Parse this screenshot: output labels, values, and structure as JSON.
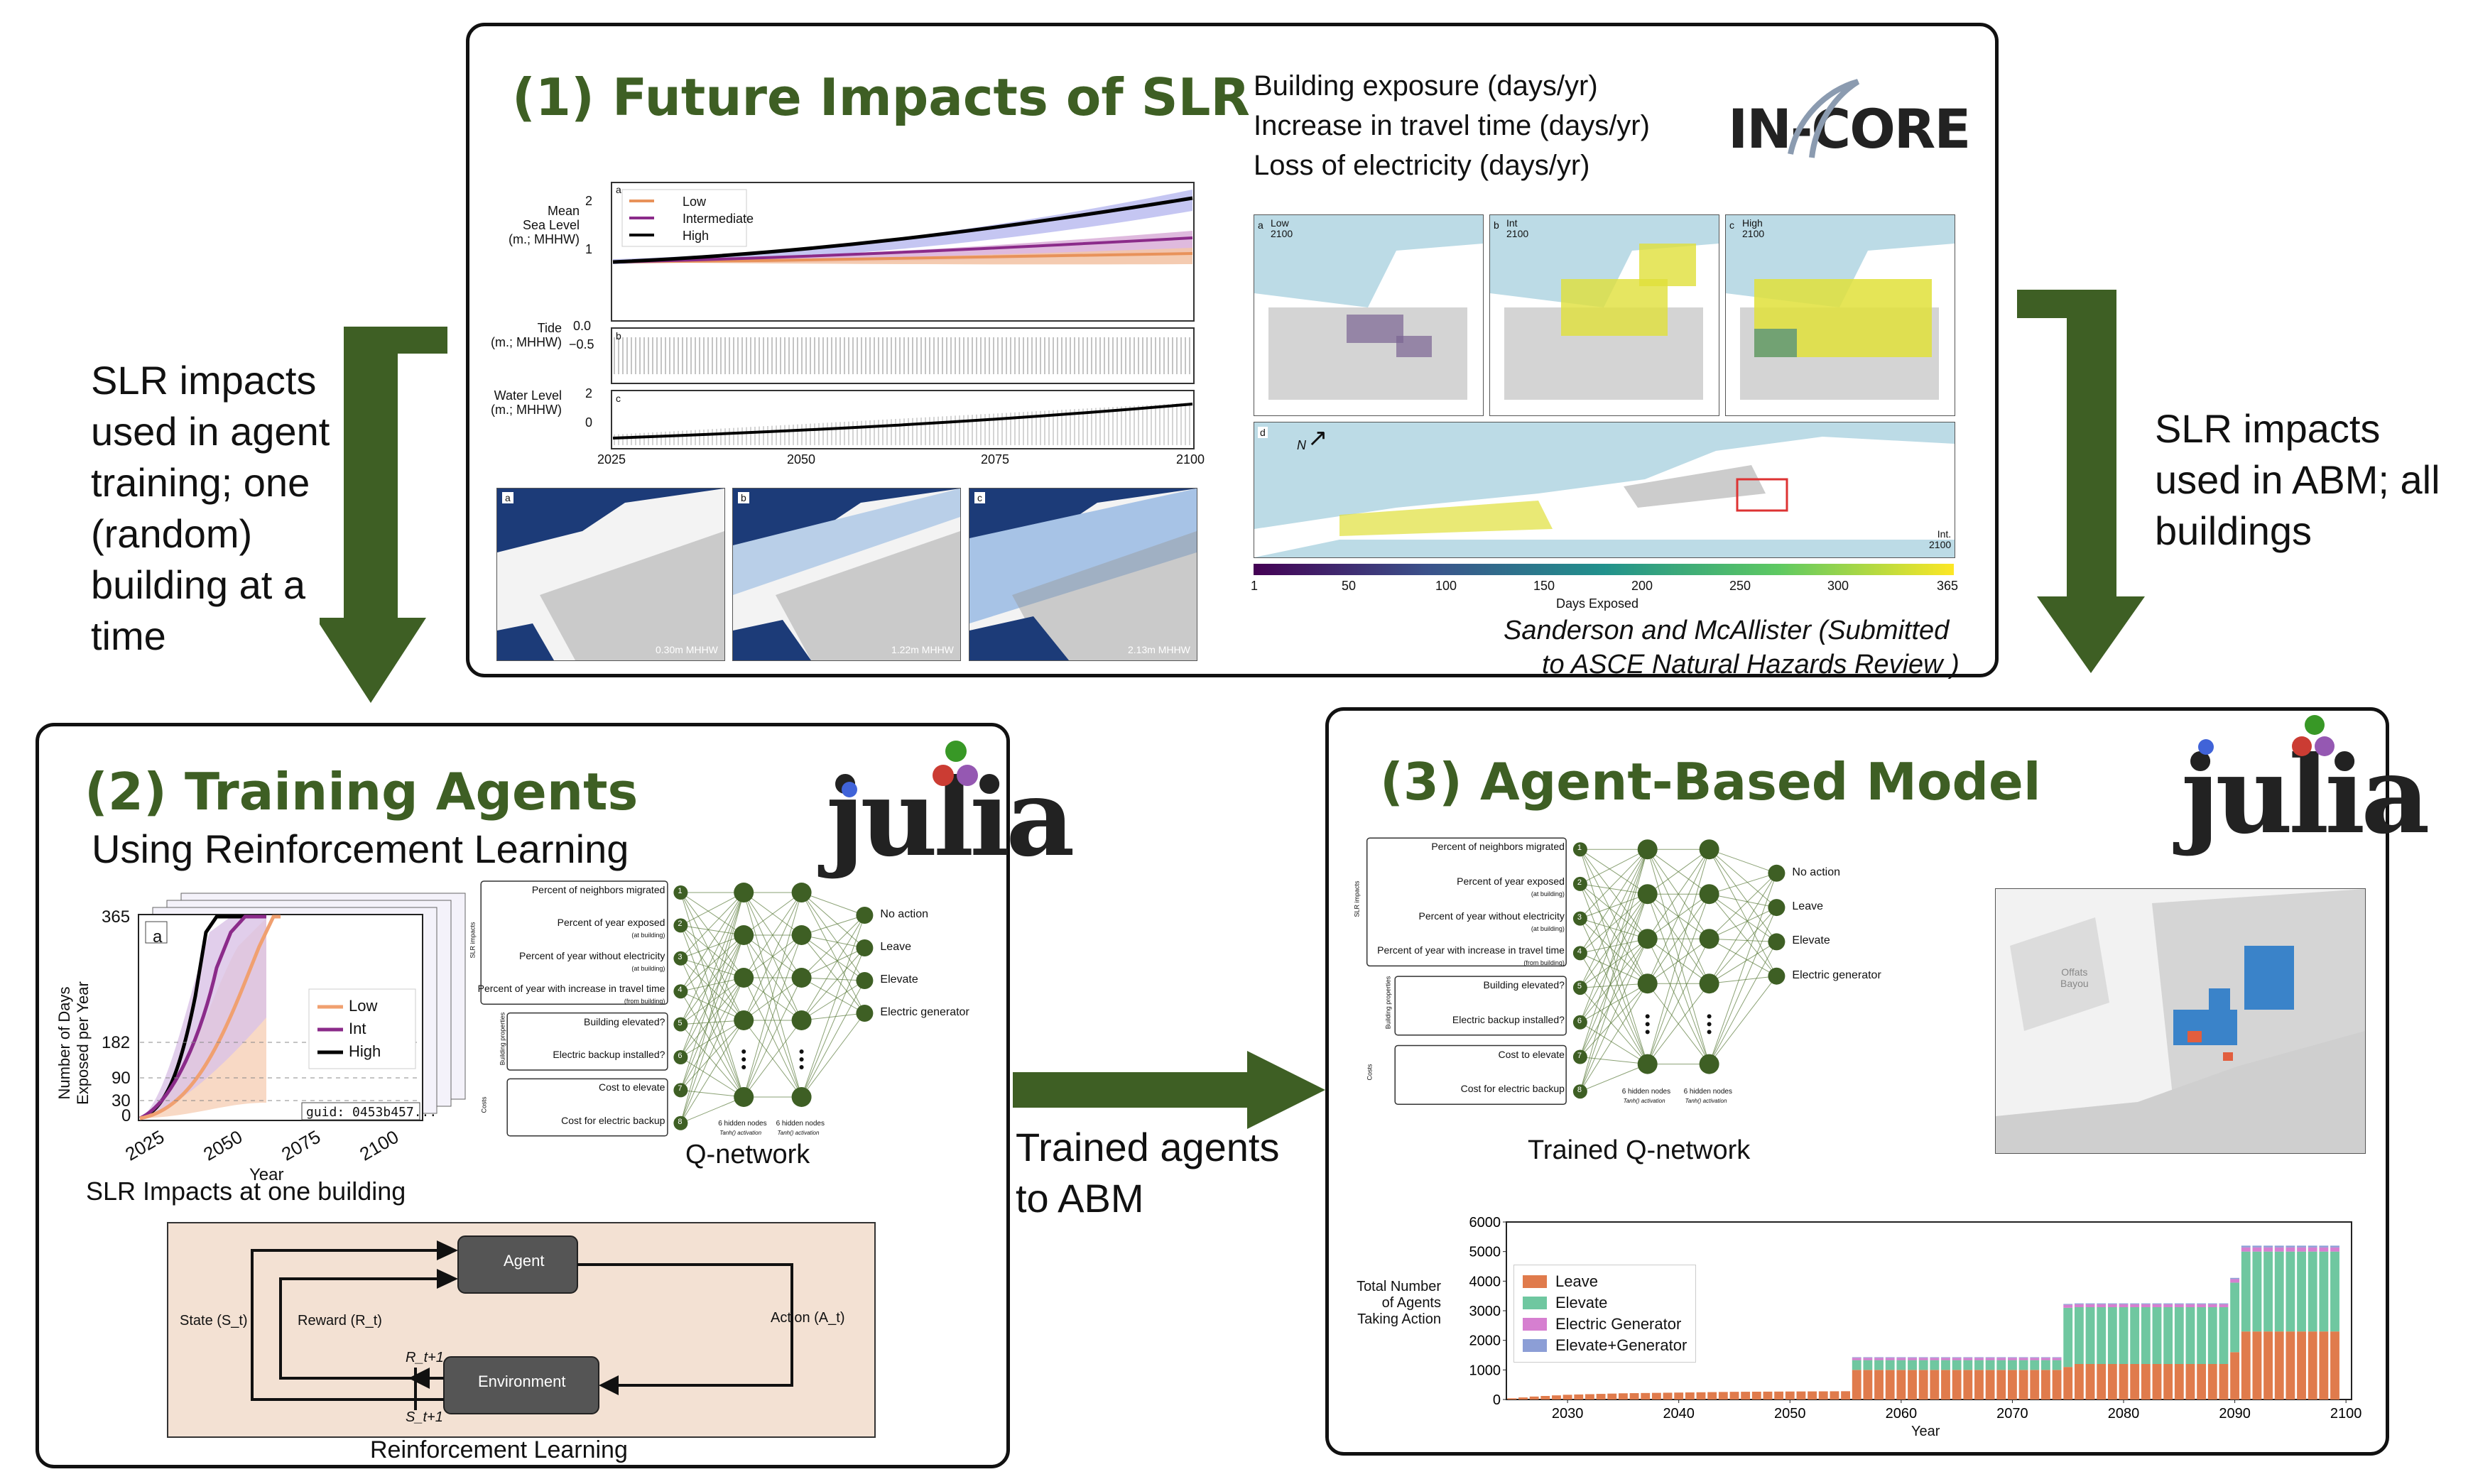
{
  "panel1": {
    "title": "(1) Future Impacts of SLR",
    "measures": [
      "Building exposure (days/yr)",
      "Increase in travel time (days/yr)",
      "Loss of electricity (days/yr)"
    ],
    "logo": "IN-CORE",
    "ts": {
      "a": "a",
      "b": "b",
      "c": "c",
      "y1": "Mean\nSea Level\n(m.; MHHW)",
      "y2": "Tide\n(m.; MHHW)",
      "y3": "Water Level\n(m.; MHHW)",
      "y1ticks": [
        "2",
        "1"
      ],
      "y2ticks": [
        "0.0",
        "−0.5"
      ],
      "y3ticks": [
        "2",
        "0"
      ],
      "xticks": [
        "2025",
        "2050",
        "2075",
        "2100"
      ],
      "legend": [
        "Low",
        "Intermediate",
        "High"
      ]
    },
    "maps": [
      {
        "tag": "a",
        "label": "0.30m MHHW"
      },
      {
        "tag": "b",
        "label": "1.22m MHHW"
      },
      {
        "tag": "c",
        "label": "2.13m MHHW"
      }
    ],
    "exposure": [
      {
        "tag": "a",
        "label": "Low\n2100"
      },
      {
        "tag": "b",
        "label": "Int\n2100"
      },
      {
        "tag": "c",
        "label": "High\n2100"
      }
    ],
    "wide": {
      "tag": "d",
      "label": "Int.\n2100",
      "north": "N"
    },
    "colorbar": {
      "ticks": [
        "1",
        "50",
        "100",
        "150",
        "200",
        "250",
        "300",
        "365"
      ],
      "title": "Days Exposed"
    },
    "citation1": "Sanderson and McAllister (Submitted",
    "citation2": "to ASCE Natural Hazards Review )"
  },
  "left_note": "SLR impacts used in agent training; one (random) building at a time",
  "right_note": "SLR impacts used in ABM; all buildings",
  "middle_note": "Trained agents to ABM",
  "panel2": {
    "title": "(2) Training Agents",
    "subtitle": "Using Reinforcement Learning",
    "logo": "julia",
    "chart": {
      "tag": "a",
      "yticks": [
        "365",
        "182",
        "90",
        "30",
        "0"
      ],
      "xticks": [
        "2025",
        "2050",
        "2075",
        "2100"
      ],
      "ylabel": "Number of Days\nExposed per Year",
      "xlabel": "Year",
      "legend": [
        "Low",
        "Int",
        "High"
      ],
      "guid": "guid: 0453b457..."
    },
    "chart_caption": "SLR Impacts at one building",
    "qnet": {
      "inputs": [
        "Percent of neighbors migrated",
        "Percent of year exposed",
        "Percent of year without electricity",
        "Percent of year with increase in travel time",
        "Building elevated?",
        "Electric backup installed?",
        "Cost to elevate",
        "Cost for electric backup"
      ],
      "subs": [
        "",
        "(at building)",
        "(at building)",
        "(from building)",
        "",
        "",
        "",
        ""
      ],
      "nums": [
        "1",
        "2",
        "3",
        "4",
        "5",
        "6",
        "7",
        "8"
      ],
      "groups": [
        "SLR impacts",
        "Building properties",
        "Costs"
      ],
      "outputs": [
        "No action",
        "Leave",
        "Elevate",
        "Electric generator"
      ],
      "hidden": "6 hidden nodes",
      "act": "Tanh() activation",
      "caption": "Q-network"
    },
    "rl": {
      "agent": "Agent",
      "env": "Environment",
      "state": "State (S_t)",
      "reward": "Reward (R_t)",
      "action": "Action (A_t)",
      "r1": "R_t+1",
      "s1": "S_t+1",
      "caption": "Reinforcement Learning"
    }
  },
  "panel3": {
    "title": "(3) Agent-Based Model",
    "logo": "julia",
    "qnet": {
      "inputs": [
        "Percent of neighbors migrated",
        "Percent of year exposed",
        "Percent of year without electricity",
        "Percent of year with increase in travel time",
        "Building elevated?",
        "Electric backup installed?",
        "Cost to elevate",
        "Cost for electric backup"
      ],
      "subs": [
        "",
        "(at building)",
        "(at building)",
        "(from building)",
        "",
        "",
        "",
        ""
      ],
      "nums": [
        "1",
        "2",
        "3",
        "4",
        "5",
        "6",
        "7",
        "8"
      ],
      "groups": [
        "SLR impacts",
        "Building properties",
        "Costs"
      ],
      "outputs": [
        "No action",
        "Leave",
        "Elevate",
        "Electric generator"
      ],
      "hidden": "6 hidden nodes",
      "act": "Tanh() activation",
      "caption": "Trained Q-network"
    },
    "map_label": "Offats\nBayou"
  },
  "chart_data": {
    "type": "bar",
    "stacked": true,
    "ylabel": "Total Number\nof Agents\nTaking Action",
    "xlabel": "Year",
    "ylim": [
      0,
      6000
    ],
    "yticks": [
      0,
      1000,
      2000,
      3000,
      4000,
      5000,
      6000
    ],
    "xticks": [
      2030,
      2040,
      2050,
      2060,
      2070,
      2080,
      2090,
      2100
    ],
    "x": [
      2025,
      2026,
      2027,
      2028,
      2029,
      2030,
      2031,
      2032,
      2033,
      2034,
      2035,
      2036,
      2037,
      2038,
      2039,
      2040,
      2041,
      2042,
      2043,
      2044,
      2045,
      2046,
      2047,
      2048,
      2049,
      2050,
      2051,
      2052,
      2053,
      2054,
      2055,
      2056,
      2057,
      2058,
      2059,
      2060,
      2061,
      2062,
      2063,
      2064,
      2065,
      2066,
      2067,
      2068,
      2069,
      2070,
      2071,
      2072,
      2073,
      2074,
      2075,
      2076,
      2077,
      2078,
      2079,
      2080,
      2081,
      2082,
      2083,
      2084,
      2085,
      2086,
      2087,
      2088,
      2089,
      2090,
      2091,
      2092,
      2093,
      2094,
      2095,
      2096,
      2097,
      2098,
      2099
    ],
    "series": [
      {
        "name": "Leave",
        "color": "#e07b4c",
        "values": [
          40,
          70,
          100,
          120,
          140,
          160,
          170,
          180,
          190,
          200,
          210,
          215,
          220,
          225,
          230,
          235,
          240,
          245,
          250,
          255,
          260,
          262,
          264,
          266,
          268,
          270,
          272,
          274,
          276,
          278,
          280,
          1000,
          1000,
          1000,
          1000,
          1000,
          1000,
          1000,
          1000,
          1000,
          1000,
          1000,
          1000,
          1000,
          1000,
          1000,
          1000,
          1000,
          1000,
          1000,
          1100,
          1200,
          1200,
          1200,
          1200,
          1200,
          1200,
          1200,
          1200,
          1200,
          1200,
          1200,
          1200,
          1200,
          1200,
          1600,
          2300,
          2300,
          2300,
          2300,
          2300,
          2300,
          2300,
          2300,
          2300
        ]
      },
      {
        "name": "Elevate",
        "color": "#6fc7a0",
        "values": [
          0,
          0,
          0,
          0,
          0,
          0,
          0,
          0,
          0,
          0,
          0,
          0,
          0,
          0,
          0,
          0,
          0,
          0,
          0,
          0,
          0,
          0,
          0,
          0,
          0,
          0,
          0,
          0,
          0,
          0,
          0,
          330,
          330,
          330,
          330,
          330,
          330,
          330,
          330,
          330,
          330,
          330,
          330,
          330,
          330,
          330,
          330,
          330,
          330,
          330,
          2000,
          1920,
          1920,
          1920,
          1920,
          1920,
          1920,
          1920,
          1920,
          1920,
          1920,
          1920,
          1920,
          1920,
          1920,
          2350,
          2700,
          2700,
          2700,
          2700,
          2700,
          2700,
          2700,
          2700,
          2700
        ]
      },
      {
        "name": "Electric Generator",
        "color": "#d67fd0",
        "values": [
          0,
          0,
          0,
          0,
          0,
          0,
          0,
          0,
          0,
          0,
          0,
          0,
          0,
          0,
          0,
          0,
          0,
          0,
          0,
          0,
          0,
          0,
          0,
          0,
          0,
          0,
          0,
          0,
          0,
          0,
          0,
          80,
          80,
          80,
          80,
          80,
          80,
          80,
          80,
          80,
          80,
          80,
          80,
          80,
          80,
          80,
          80,
          80,
          80,
          80,
          100,
          100,
          100,
          100,
          100,
          100,
          100,
          100,
          100,
          100,
          100,
          100,
          100,
          100,
          100,
          120,
          140,
          140,
          140,
          140,
          140,
          140,
          140,
          140,
          140
        ]
      },
      {
        "name": "Elevate+Generator",
        "color": "#8c9ed6",
        "values": [
          0,
          0,
          0,
          0,
          0,
          0,
          0,
          0,
          0,
          0,
          0,
          0,
          0,
          0,
          0,
          0,
          0,
          0,
          0,
          0,
          0,
          0,
          0,
          0,
          0,
          0,
          0,
          0,
          0,
          0,
          0,
          20,
          20,
          20,
          20,
          20,
          20,
          20,
          20,
          20,
          20,
          20,
          20,
          20,
          20,
          20,
          20,
          20,
          20,
          20,
          30,
          30,
          30,
          30,
          30,
          30,
          30,
          30,
          30,
          30,
          30,
          30,
          30,
          30,
          30,
          40,
          60,
          60,
          60,
          60,
          60,
          60,
          60,
          60,
          60
        ]
      }
    ]
  }
}
